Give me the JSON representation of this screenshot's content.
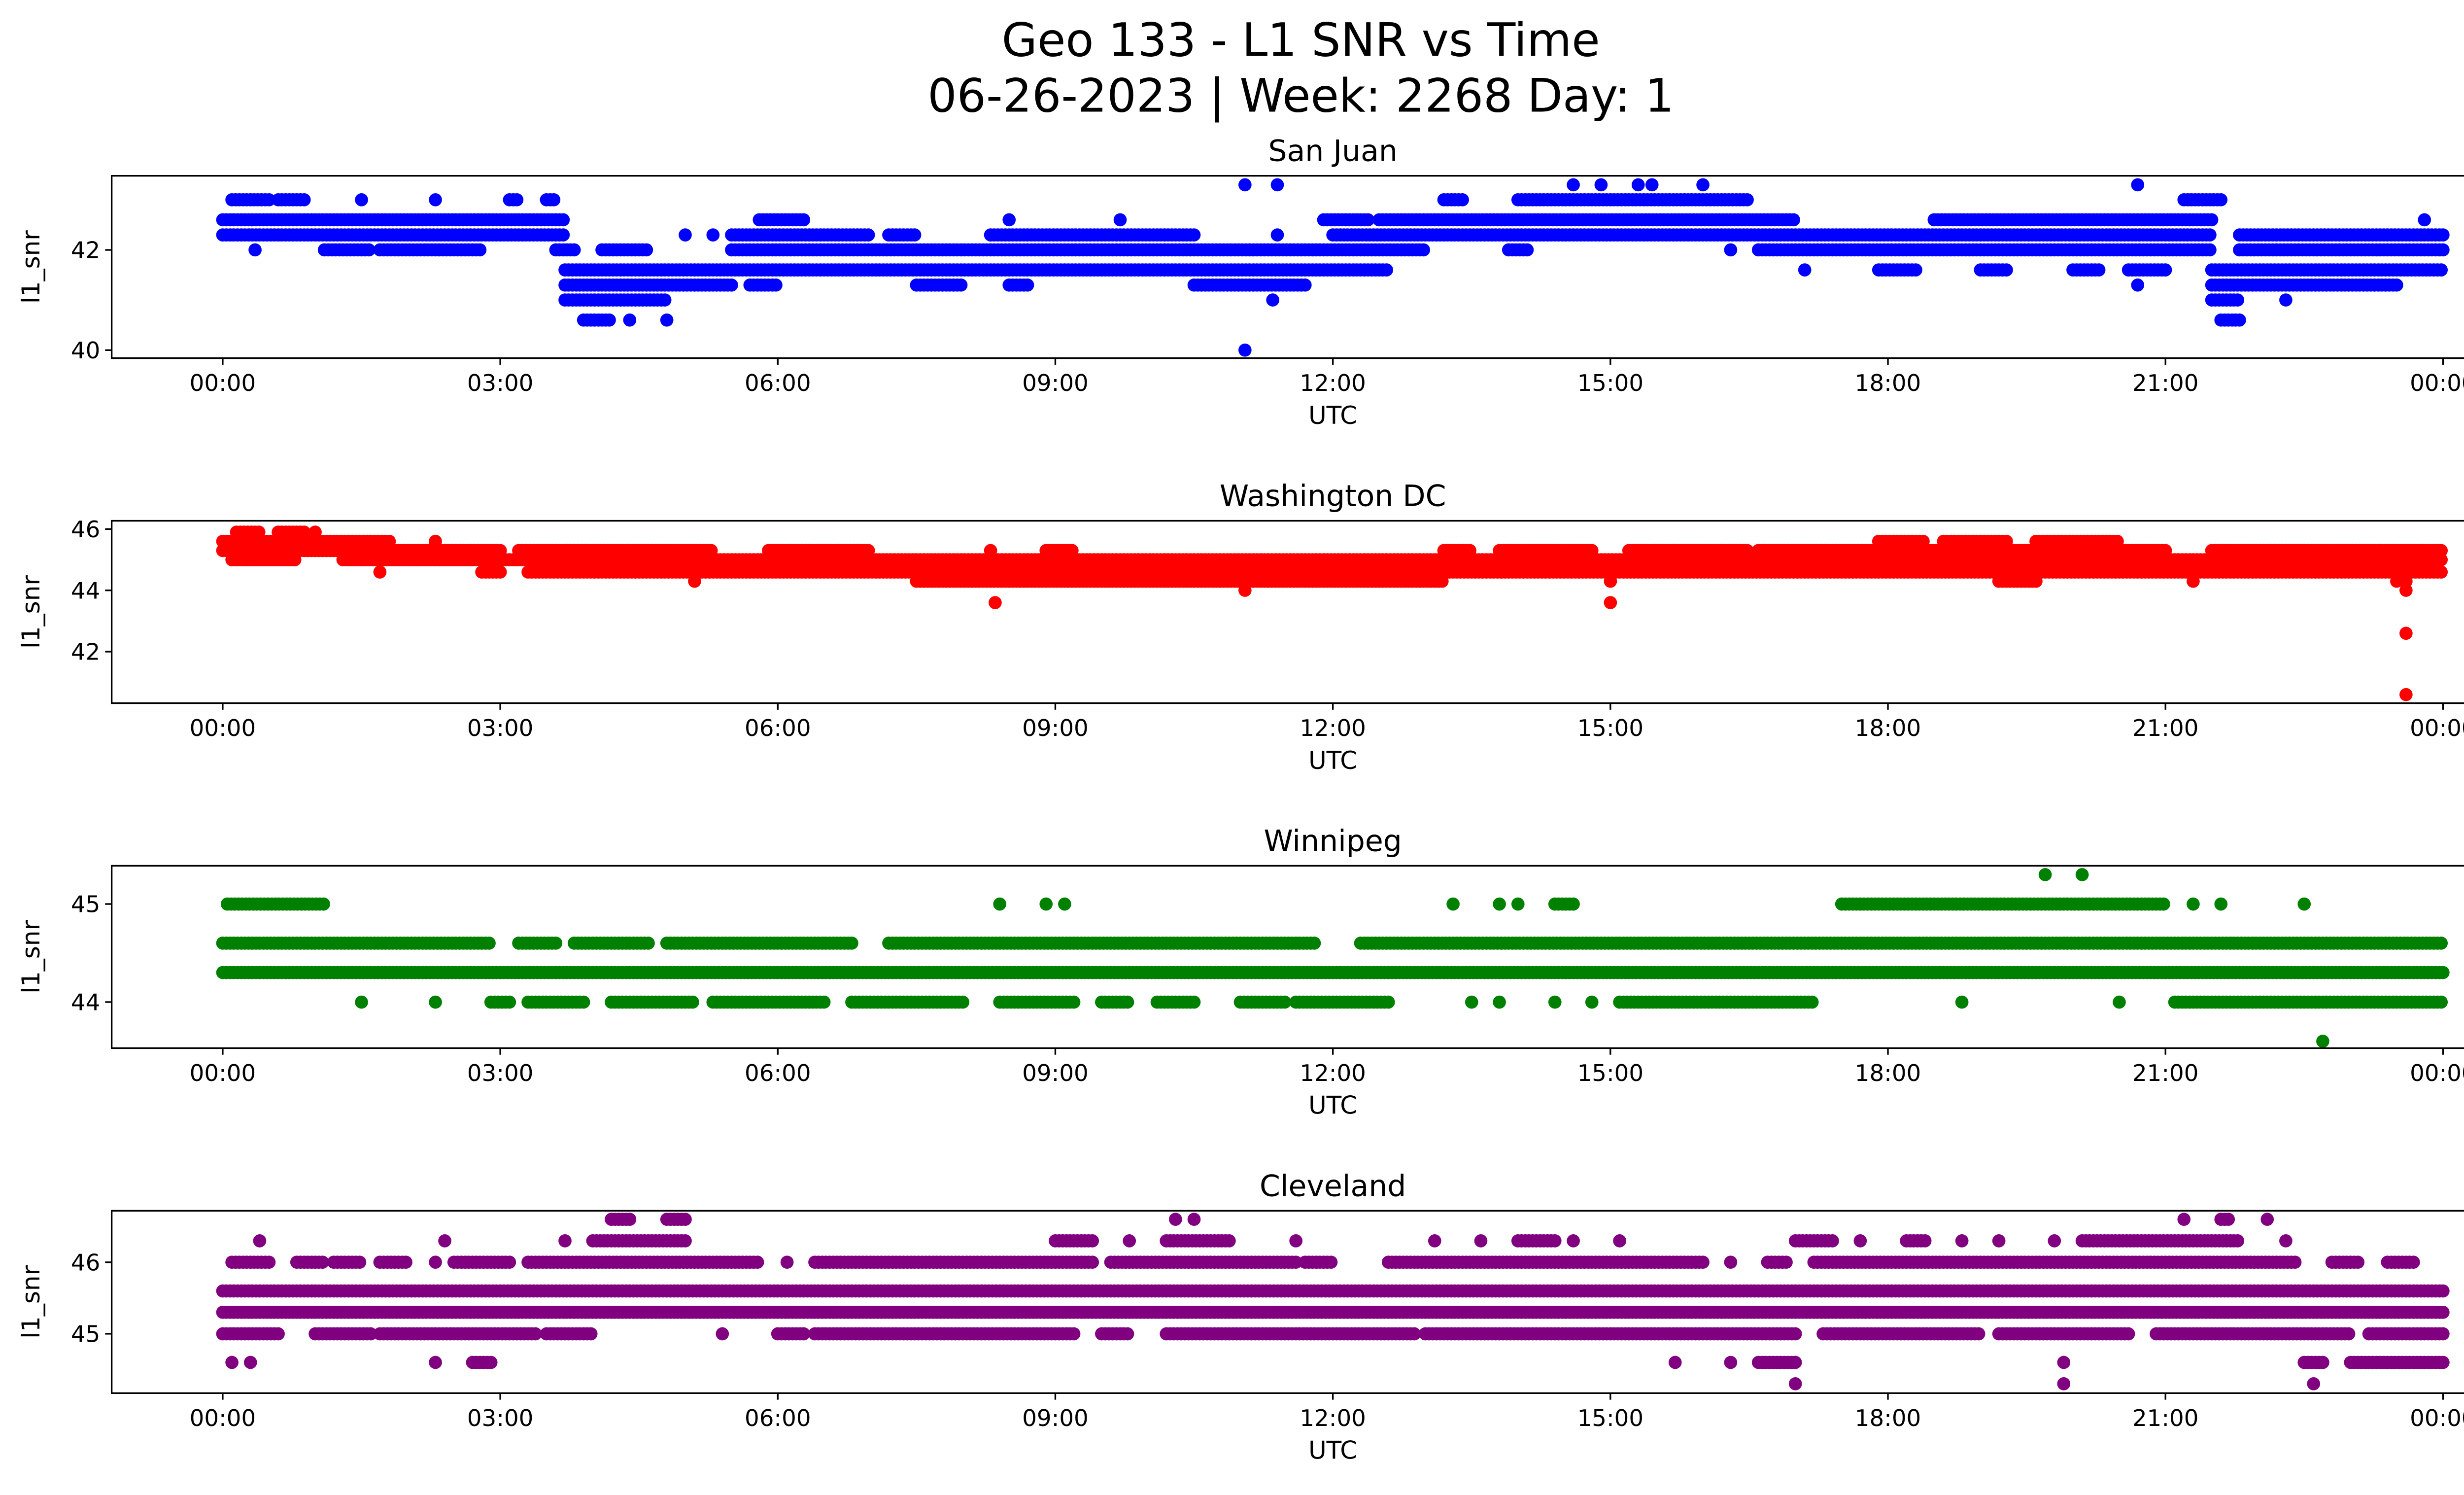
{
  "chart_data": {
    "type": "scatter",
    "title": "Geo 133 - L1 SNR vs Time",
    "subtitle": "06-26-2023 | Week: 2268 Day: 1",
    "x_ticks": [
      "00:00",
      "03:00",
      "06:00",
      "09:00",
      "12:00",
      "15:00",
      "18:00",
      "21:00",
      "00:00"
    ],
    "x_range_hours": [
      -1.2,
      25.2
    ],
    "panels": [
      {
        "title": "San Juan",
        "xlabel": "UTC",
        "ylabel": "l1_snr",
        "color": "#0000ff",
        "ylim": [
          39.84,
          43.48
        ],
        "yticks": [
          40,
          42
        ],
        "levels": [
          {
            "y": 43.3,
            "runs": [
              [
                11.05
              ],
              [
                11.4
              ],
              [
                14.6
              ],
              [
                14.9
              ],
              [
                15.3
              ],
              [
                15.45
              ],
              [
                16.0
              ],
              [
                20.7
              ]
            ]
          },
          {
            "y": 43.0,
            "runs": [
              [
                0.1,
                0.5
              ],
              [
                0.6,
                0.9
              ],
              [
                1.5
              ],
              [
                2.3
              ],
              [
                3.1,
                3.2
              ],
              [
                3.5,
                3.6
              ],
              [
                13.2,
                13.4
              ],
              [
                14,
                16.5
              ],
              [
                21.2,
                21.6
              ]
            ]
          },
          {
            "y": 42.6,
            "runs": [
              [
                0,
                3.7
              ],
              [
                5.8,
                6.3
              ],
              [
                8.5
              ],
              [
                9.7
              ],
              [
                11.9,
                12.4
              ],
              [
                12.5,
                17.0
              ],
              [
                18.5,
                21.5
              ],
              [
                23.8
              ]
            ]
          },
          {
            "y": 42.3,
            "runs": [
              [
                0,
                3.7
              ],
              [
                5.0
              ],
              [
                5.3
              ],
              [
                5.5,
                7.0
              ],
              [
                7.2,
                7.5
              ],
              [
                8.3,
                10.5
              ],
              [
                11.4
              ],
              [
                12,
                21.5
              ],
              [
                21.8,
                24
              ]
            ]
          },
          {
            "y": 42.0,
            "runs": [
              [
                0.35
              ],
              [
                1.1,
                1.6
              ],
              [
                1.7,
                2.8
              ],
              [
                3.6,
                3.8
              ],
              [
                4.1,
                4.6
              ],
              [
                5.5,
                13
              ],
              [
                13.9,
                14.1
              ],
              [
                16.3
              ],
              [
                16.6,
                21.5
              ],
              [
                21.8,
                24
              ]
            ]
          },
          {
            "y": 41.6,
            "runs": [
              [
                3.7,
                12.6
              ],
              [
                17.1
              ],
              [
                17.9,
                18.3
              ],
              [
                19.0,
                19.3
              ],
              [
                20.0,
                20.3
              ],
              [
                20.6,
                21.0
              ],
              [
                21.5,
                24
              ]
            ]
          },
          {
            "y": 41.3,
            "runs": [
              [
                3.7,
                5.5
              ],
              [
                5.7,
                6.0
              ],
              [
                7.5,
                8.0
              ],
              [
                8.5,
                8.7
              ],
              [
                10.5,
                11.7
              ],
              [
                20.7
              ],
              [
                21.5,
                23.5
              ]
            ]
          },
          {
            "y": 41.0,
            "runs": [
              [
                3.7,
                4.8
              ],
              [
                11.35
              ],
              [
                21.5,
                21.8
              ],
              [
                22.3
              ]
            ]
          },
          {
            "y": 40.6,
            "runs": [
              [
                3.9,
                4.2
              ],
              [
                4.4
              ],
              [
                4.8
              ],
              [
                21.6,
                21.8
              ]
            ]
          },
          {
            "y": 40.0,
            "runs": [
              [
                11.05
              ]
            ]
          }
        ]
      },
      {
        "title": "Washington DC",
        "xlabel": "UTC",
        "ylabel": "l1_snr",
        "color": "#ff0000",
        "ylim": [
          40.32,
          46.27
        ],
        "yticks": [
          42,
          44,
          46
        ],
        "levels": [
          {
            "y": 45.9,
            "runs": [
              [
                0.15,
                0.4
              ],
              [
                0.6,
                0.9
              ],
              [
                1.0
              ]
            ]
          },
          {
            "y": 45.6,
            "runs": [
              [
                0,
                1.8
              ],
              [
                2.3
              ],
              [
                17.9,
                18.4
              ],
              [
                18.6,
                19.3
              ],
              [
                19.6,
                20.5
              ]
            ]
          },
          {
            "y": 45.3,
            "runs": [
              [
                0,
                3.0
              ],
              [
                3.2,
                5.3
              ],
              [
                5.9,
                7.0
              ],
              [
                8.3
              ],
              [
                8.9,
                9.2
              ],
              [
                13.2,
                13.5
              ],
              [
                13.8,
                14.8
              ],
              [
                15.2,
                16.5
              ],
              [
                16.6,
                21
              ],
              [
                21.5,
                24
              ]
            ]
          },
          {
            "y": 45.0,
            "runs": [
              [
                0.1,
                0.8
              ],
              [
                1.3,
                24
              ]
            ]
          },
          {
            "y": 44.6,
            "runs": [
              [
                1.7
              ],
              [
                2.8,
                3.0
              ],
              [
                3.3,
                24
              ]
            ]
          },
          {
            "y": 44.3,
            "runs": [
              [
                5.1
              ],
              [
                7.5,
                13.2
              ],
              [
                15
              ],
              [
                19.2,
                19.6
              ],
              [
                21.3
              ],
              [
                23.5
              ],
              [
                23.6
              ]
            ]
          },
          {
            "y": 44.0,
            "runs": [
              [
                11.05
              ],
              [
                23.6
              ]
            ]
          },
          {
            "y": 43.6,
            "runs": [
              [
                8.35
              ],
              [
                15.0
              ]
            ]
          },
          {
            "y": 42.6,
            "runs": [
              [
                23.6
              ]
            ]
          },
          {
            "y": 40.6,
            "runs": [
              [
                23.6
              ]
            ]
          }
        ]
      },
      {
        "title": "Winnipeg",
        "xlabel": "UTC",
        "ylabel": "l1_snr",
        "color": "#008000",
        "ylim": [
          43.53,
          45.39
        ],
        "yticks": [
          44,
          45
        ],
        "levels": [
          {
            "y": 45.3,
            "runs": [
              [
                19.7
              ],
              [
                20.1
              ]
            ]
          },
          {
            "y": 45.0,
            "runs": [
              [
                0.05,
                1.1
              ],
              [
                8.4
              ],
              [
                8.9
              ],
              [
                9.1
              ],
              [
                13.3
              ],
              [
                13.8
              ],
              [
                14.0
              ],
              [
                14.4,
                14.6
              ],
              [
                17.5,
                21.0
              ],
              [
                21.3
              ],
              [
                21.6
              ],
              [
                22.5
              ]
            ]
          },
          {
            "y": 44.6,
            "runs": [
              [
                0,
                2.9
              ],
              [
                3.2,
                3.6
              ],
              [
                3.8,
                4.6
              ],
              [
                4.8,
                6.8
              ],
              [
                7.2,
                11.8
              ],
              [
                12.3,
                24
              ]
            ]
          },
          {
            "y": 44.3,
            "runs": [
              [
                0,
                24
              ]
            ]
          },
          {
            "y": 44.0,
            "runs": [
              [
                1.5
              ],
              [
                2.3
              ],
              [
                2.9,
                3.1
              ],
              [
                3.3,
                3.9
              ],
              [
                4.2,
                5.1
              ],
              [
                5.3,
                6.5
              ],
              [
                6.8,
                8.0
              ],
              [
                8.4,
                9.2
              ],
              [
                9.5,
                9.8
              ],
              [
                10.1,
                10.5
              ],
              [
                11.0,
                11.5
              ],
              [
                11.6,
                12.6
              ],
              [
                13.5
              ],
              [
                13.8
              ],
              [
                14.4
              ],
              [
                14.8
              ],
              [
                15.1,
                17.2
              ],
              [
                18.8
              ],
              [
                20.5
              ],
              [
                21.1,
                24
              ]
            ]
          },
          {
            "y": 43.6,
            "runs": [
              [
                22.7
              ]
            ]
          }
        ]
      },
      {
        "title": "Cleveland",
        "xlabel": "UTC",
        "ylabel": "l1_snr",
        "color": "#800080",
        "ylim": [
          44.17,
          46.72
        ],
        "yticks": [
          45,
          46
        ],
        "levels": [
          {
            "y": 46.6,
            "runs": [
              [
                4.2,
                4.4
              ],
              [
                4.8,
                5.0
              ],
              [
                10.3
              ],
              [
                10.5
              ],
              [
                21.2
              ],
              [
                21.6,
                21.7
              ],
              [
                22.1
              ]
            ]
          },
          {
            "y": 46.3,
            "runs": [
              [
                0.4
              ],
              [
                2.4
              ],
              [
                3.7
              ],
              [
                4.0,
                5.0
              ],
              [
                9.0,
                9.4
              ],
              [
                9.8
              ],
              [
                10.2,
                10.9
              ],
              [
                11.6
              ],
              [
                13.1
              ],
              [
                13.6
              ],
              [
                14.0,
                14.4
              ],
              [
                14.6
              ],
              [
                15.1
              ],
              [
                17.0,
                17.4
              ],
              [
                17.7
              ],
              [
                18.2,
                18.4
              ],
              [
                18.8
              ],
              [
                19.2
              ],
              [
                19.8
              ],
              [
                20.1,
                21.8
              ],
              [
                22.3
              ]
            ]
          },
          {
            "y": 46.0,
            "runs": [
              [
                0.1,
                0.5
              ],
              [
                0.8,
                1.1
              ],
              [
                1.2,
                1.5
              ],
              [
                1.7,
                2.0
              ],
              [
                2.3
              ],
              [
                2.5,
                3.1
              ],
              [
                3.3,
                5.8
              ],
              [
                6.1
              ],
              [
                6.4,
                9.4
              ],
              [
                9.6,
                11.6
              ],
              [
                11.7,
                12.0
              ],
              [
                12.6,
                16.0
              ],
              [
                16.3
              ],
              [
                16.7,
                16.9
              ],
              [
                17.2,
                22.4
              ],
              [
                22.8,
                23.1
              ],
              [
                23.4,
                23.7
              ]
            ]
          },
          {
            "y": 45.6,
            "runs": [
              [
                0,
                24
              ]
            ]
          },
          {
            "y": 45.3,
            "runs": [
              [
                0,
                24
              ]
            ]
          },
          {
            "y": 45.0,
            "runs": [
              [
                0,
                0.6
              ],
              [
                1.0,
                1.6
              ],
              [
                1.7,
                3.4
              ],
              [
                3.5,
                4.0
              ],
              [
                5.4
              ],
              [
                6.0,
                6.3
              ],
              [
                6.4,
                9.2
              ],
              [
                9.5,
                9.8
              ],
              [
                10.2,
                12.9
              ],
              [
                13.0,
                17.0
              ],
              [
                17.3,
                19.0
              ],
              [
                19.2,
                20.6
              ],
              [
                20.9,
                23.0
              ],
              [
                23.2,
                24
              ]
            ]
          },
          {
            "y": 44.6,
            "runs": [
              [
                0.1
              ],
              [
                0.3
              ],
              [
                2.3
              ],
              [
                2.7,
                2.9
              ],
              [
                15.7
              ],
              [
                16.3
              ],
              [
                16.6,
                17.0
              ],
              [
                19.9
              ],
              [
                22.5,
                22.7
              ],
              [
                23.0,
                24
              ]
            ]
          },
          {
            "y": 44.3,
            "runs": [
              [
                17.0
              ],
              [
                19.9
              ],
              [
                22.6
              ]
            ]
          }
        ]
      }
    ]
  }
}
